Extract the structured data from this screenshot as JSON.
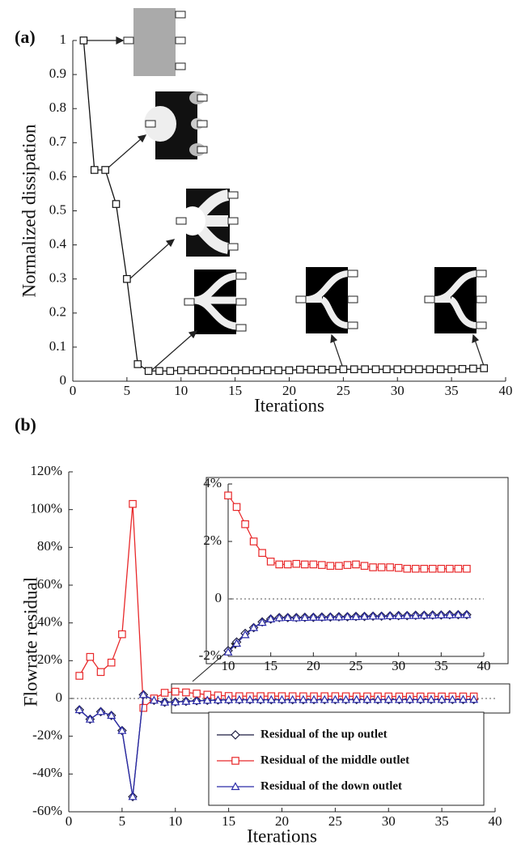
{
  "chart_data": [
    {
      "type": "line",
      "title": "(a)",
      "xlabel": "Iterations",
      "ylabel": "Normalized dissipation",
      "x": [
        1,
        2,
        3,
        4,
        5,
        6,
        7,
        8,
        9,
        10,
        11,
        12,
        13,
        14,
        15,
        16,
        17,
        18,
        19,
        20,
        21,
        22,
        23,
        24,
        25,
        26,
        27,
        28,
        29,
        30,
        31,
        32,
        33,
        34,
        35,
        36,
        37,
        38
      ],
      "series": [
        {
          "color": "#111111",
          "marker": "square",
          "values": [
            1.0,
            0.62,
            0.62,
            0.52,
            0.3,
            0.05,
            0.03,
            0.03,
            0.03,
            0.032,
            0.032,
            0.032,
            0.032,
            0.032,
            0.032,
            0.032,
            0.032,
            0.032,
            0.032,
            0.032,
            0.034,
            0.034,
            0.034,
            0.034,
            0.035,
            0.035,
            0.035,
            0.035,
            0.035,
            0.035,
            0.035,
            0.035,
            0.035,
            0.035,
            0.035,
            0.036,
            0.037,
            0.038
          ]
        }
      ],
      "xlim": [
        0,
        40
      ],
      "xticks": [
        0,
        5,
        10,
        15,
        20,
        25,
        30,
        35,
        40
      ],
      "ylim": [
        0,
        1
      ],
      "yticks": [
        0,
        0.1,
        0.2,
        0.3,
        0.4,
        0.5,
        0.6,
        0.7,
        0.8,
        0.9,
        1
      ]
    },
    {
      "type": "line",
      "title": "(b)",
      "xlabel": "Iterations",
      "ylabel": "Flowrate residual",
      "x": [
        1,
        2,
        3,
        4,
        5,
        6,
        7,
        8,
        9,
        10,
        11,
        12,
        13,
        14,
        15,
        16,
        17,
        18,
        19,
        20,
        21,
        22,
        23,
        24,
        25,
        26,
        27,
        28,
        29,
        30,
        31,
        32,
        33,
        34,
        35,
        36,
        37,
        38
      ],
      "series": [
        {
          "name": "Residual of the up outlet",
          "color": "#1c1c40",
          "marker": "diamond",
          "values": [
            -6,
            -11,
            -7,
            -9,
            -17,
            -52,
            2,
            -1,
            -2,
            -1.8,
            -1.5,
            -1.2,
            -1.0,
            -0.8,
            -0.7,
            -0.65,
            -0.65,
            -0.65,
            -0.64,
            -0.64,
            -0.63,
            -0.63,
            -0.62,
            -0.62,
            -0.61,
            -0.61,
            -0.6,
            -0.6,
            -0.59,
            -0.58,
            -0.58,
            -0.57,
            -0.57,
            -0.56,
            -0.56,
            -0.55,
            -0.55,
            -0.55
          ]
        },
        {
          "name": "Residual of the middle outlet",
          "color": "#e8282a",
          "marker": "square",
          "values": [
            12,
            22,
            14,
            19,
            34,
            103,
            -5,
            0,
            3,
            3.6,
            3.2,
            2.6,
            2.0,
            1.6,
            1.3,
            1.2,
            1.2,
            1.22,
            1.2,
            1.2,
            1.18,
            1.15,
            1.15,
            1.18,
            1.2,
            1.15,
            1.1,
            1.1,
            1.1,
            1.08,
            1.05,
            1.05,
            1.05,
            1.05,
            1.05,
            1.05,
            1.05,
            1.05
          ]
        },
        {
          "name": "Residual of the down outlet",
          "color": "#2a2aa8",
          "marker": "triangle",
          "values": [
            -6,
            -11,
            -7,
            -9,
            -17,
            -52,
            2,
            -1,
            -2,
            -1.85,
            -1.55,
            -1.25,
            -1.0,
            -0.82,
            -0.7,
            -0.66,
            -0.65,
            -0.66,
            -0.65,
            -0.64,
            -0.64,
            -0.63,
            -0.63,
            -0.62,
            -0.62,
            -0.61,
            -0.6,
            -0.6,
            -0.59,
            -0.59,
            -0.58,
            -0.58,
            -0.57,
            -0.57,
            -0.56,
            -0.56,
            -0.55,
            -0.55
          ]
        }
      ],
      "xlim": [
        0,
        40
      ],
      "xticks": [
        0,
        5,
        10,
        15,
        20,
        25,
        30,
        35,
        40
      ],
      "ylim": [
        -60,
        120
      ],
      "yticks": [
        {
          "value": -60,
          "label": "-60%"
        },
        {
          "value": -40,
          "label": "-40%"
        },
        {
          "value": -20,
          "label": "-20%"
        },
        0,
        {
          "value": 20,
          "label": "20%"
        },
        {
          "value": 40,
          "label": "40%"
        },
        {
          "value": 60,
          "label": "60%"
        },
        {
          "value": 80,
          "label": "80%"
        },
        {
          "value": 100,
          "label": "100%"
        },
        {
          "value": 120,
          "label": "120%"
        }
      ],
      "zero_line": true,
      "legend": "bottom-right",
      "inset": {
        "xlim": [
          10,
          40
        ],
        "xticks": [
          10,
          15,
          20,
          25,
          30,
          35,
          40
        ],
        "ylim": [
          -2,
          4
        ],
        "yticks": [
          {
            "value": -2,
            "label": "-2%"
          },
          0,
          {
            "value": 2,
            "label": "2%"
          },
          {
            "value": 4,
            "label": "4%"
          }
        ],
        "zero_line": true
      }
    }
  ]
}
